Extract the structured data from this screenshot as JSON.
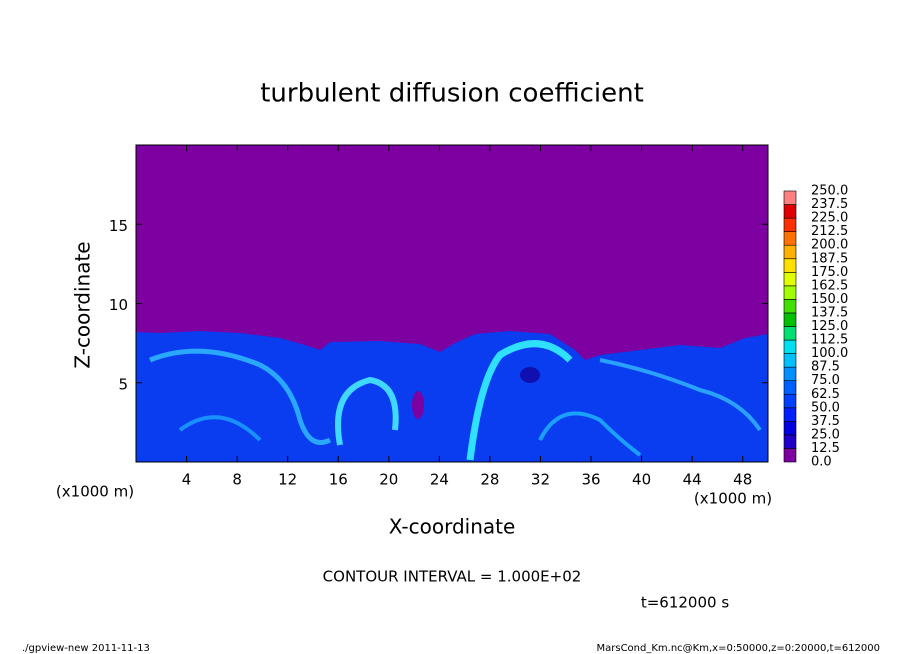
{
  "chart_data": {
    "type": "heatmap",
    "title": "turbulent diffusion coefficient",
    "xlabel": "X-coordinate",
    "ylabel": "Z-coordinate",
    "x_unit_label": "(x1000 m)",
    "y_unit_label": "(x1000 m)",
    "xlim": [
      0,
      50
    ],
    "xticks": [
      4,
      8,
      12,
      16,
      20,
      24,
      28,
      32,
      36,
      40,
      44,
      48
    ],
    "ylim": [
      0,
      20
    ],
    "yticks": [
      5,
      10,
      15
    ],
    "colorbar": {
      "levels": [
        {
          "value": 0,
          "label": "0.0"
        },
        12.5,
        {
          "value": 25,
          "label": "25.0"
        },
        37.5,
        {
          "value": 50,
          "label": "50.0"
        },
        62.5,
        {
          "value": 75,
          "label": "75.0"
        },
        87.5,
        {
          "value": 100,
          "label": "100.0"
        },
        112.5,
        {
          "value": 125,
          "label": "125.0"
        },
        137.5,
        {
          "value": 150,
          "label": "150.0"
        },
        162.5,
        {
          "value": 175,
          "label": "175.0"
        },
        187.5,
        {
          "value": 200,
          "label": "200.0"
        },
        212.5,
        {
          "value": 225,
          "label": "225.0"
        },
        237.5,
        {
          "value": 250,
          "label": "250.0"
        }
      ],
      "colors": [
        "#7d00a0",
        "#2000c8",
        "#0000e0",
        "#0020ff",
        "#0040ff",
        "#0060ff",
        "#0090ff",
        "#00c0ff",
        "#00e0f0",
        "#00e070",
        "#00c000",
        "#40e000",
        "#a0ff00",
        "#e0ff00",
        "#ffe000",
        "#ffb000",
        "#ff7000",
        "#ff3000",
        "#e00000",
        "#ff8080"
      ]
    },
    "contour_note": "CONTOUR INTERVAL = 1.000E+02",
    "time_note": "t=612000 s",
    "footer_left": "./gpview-new  2011-11-13",
    "footer_right": "MarsCond_Km.nc@Km,x=0:50000,z=0:20000,t=612000"
  }
}
